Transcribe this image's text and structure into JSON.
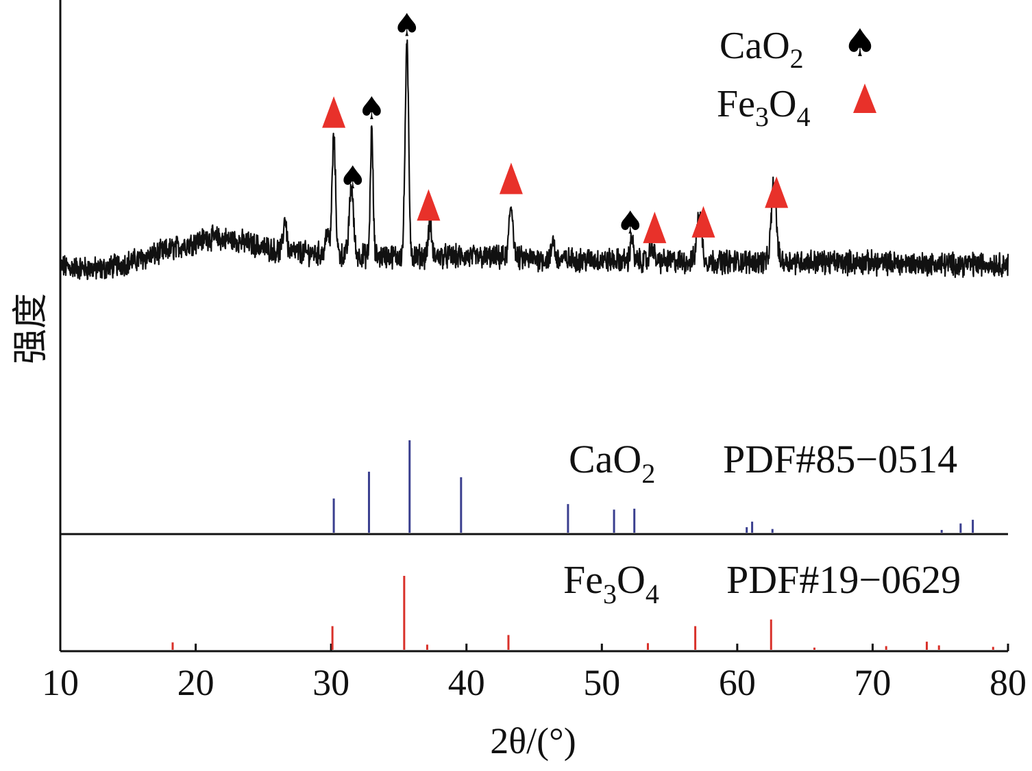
{
  "chart_data": {
    "type": "line",
    "title": "",
    "xlabel": "2θ/(°)",
    "ylabel": "强度",
    "xlim": [
      10,
      80
    ],
    "x_ticks": [
      10,
      20,
      30,
      40,
      50,
      60,
      70,
      80
    ],
    "grid": false,
    "legend": {
      "placement": "top-right",
      "entries": [
        {
          "formula": "CaO",
          "sub": "2",
          "marker": "spade",
          "marker_glyph": "♠",
          "color": "#000000"
        },
        {
          "formula": "Fe",
          "sub1": "3",
          "formula2": "O",
          "sub2": "4",
          "marker": "triangle",
          "color": "#e8312a"
        }
      ]
    },
    "pattern": {
      "name": "sample",
      "color": "#111111",
      "baseline_profile": [
        [
          10,
          0.17
        ],
        [
          13,
          0.16
        ],
        [
          16,
          0.2
        ],
        [
          19,
          0.25
        ],
        [
          21,
          0.28
        ],
        [
          23,
          0.27
        ],
        [
          26,
          0.23
        ],
        [
          29,
          0.22
        ],
        [
          33,
          0.21
        ],
        [
          38,
          0.21
        ],
        [
          45,
          0.2
        ],
        [
          55,
          0.19
        ],
        [
          65,
          0.19
        ],
        [
          75,
          0.18
        ],
        [
          80,
          0.18
        ]
      ],
      "peaks": [
        {
          "x": 26.6,
          "h": 0.16,
          "w": 0.12
        },
        {
          "x": 29.7,
          "h": 0.12,
          "w": 0.1
        },
        {
          "x": 30.2,
          "h": 0.55,
          "w": 0.13
        },
        {
          "x": 31.5,
          "h": 0.33,
          "w": 0.15
        },
        {
          "x": 33.0,
          "h": 0.6,
          "w": 0.1
        },
        {
          "x": 35.6,
          "h": 1.0,
          "w": 0.13
        },
        {
          "x": 37.3,
          "h": 0.16,
          "w": 0.12
        },
        {
          "x": 43.3,
          "h": 0.25,
          "w": 0.15
        },
        {
          "x": 46.4,
          "h": 0.1,
          "w": 0.1
        },
        {
          "x": 52.2,
          "h": 0.12,
          "w": 0.1
        },
        {
          "x": 53.7,
          "h": 0.08,
          "w": 0.14
        },
        {
          "x": 57.2,
          "h": 0.23,
          "w": 0.18
        },
        {
          "x": 62.7,
          "h": 0.37,
          "w": 0.18
        }
      ],
      "markers": [
        {
          "x": 30.2,
          "type": "triangle"
        },
        {
          "x": 31.6,
          "type": "spade"
        },
        {
          "x": 33.0,
          "type": "spade"
        },
        {
          "x": 35.6,
          "type": "spade"
        },
        {
          "x": 37.2,
          "type": "triangle"
        },
        {
          "x": 43.3,
          "type": "triangle"
        },
        {
          "x": 52.1,
          "type": "spade"
        },
        {
          "x": 53.9,
          "type": "triangle"
        },
        {
          "x": 57.5,
          "type": "triangle"
        },
        {
          "x": 62.9,
          "type": "triangle"
        }
      ]
    },
    "references": [
      {
        "formula": "CaO",
        "sub": "2",
        "pdf": "PDF#85−0514",
        "color": "#3a3f8f",
        "x": [
          30.2,
          32.8,
          35.8,
          39.6,
          47.5,
          50.9,
          52.4,
          60.7,
          61.1,
          62.6,
          75.1,
          76.5,
          77.4
        ],
        "values": [
          0.37,
          0.66,
          1.0,
          0.6,
          0.31,
          0.25,
          0.26,
          0.06,
          0.12,
          0.04,
          0.03,
          0.1,
          0.14
        ]
      },
      {
        "formula": "Fe",
        "sub1": "3",
        "formula2": "O",
        "sub2": "4",
        "pdf": "PDF#19−0629",
        "color": "#d9312a",
        "x": [
          18.3,
          30.1,
          35.4,
          37.1,
          43.1,
          53.4,
          56.9,
          62.5,
          65.7,
          71.0,
          74.0,
          74.9,
          78.9
        ],
        "values": [
          0.1,
          0.32,
          1.0,
          0.07,
          0.2,
          0.09,
          0.32,
          0.41,
          0.03,
          0.05,
          0.11,
          0.06,
          0.04
        ]
      }
    ]
  }
}
